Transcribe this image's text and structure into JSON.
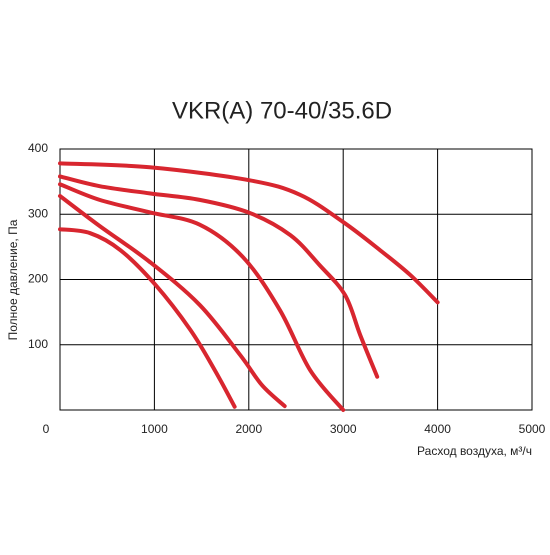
{
  "chart_data": {
    "type": "line",
    "title": "VKR(A) 70-40/35.6D",
    "x_label": "Расход воздуха, м³/ч",
    "y_label": "Полное давление, Па",
    "color": "#d8262f",
    "grid": true,
    "xlim": [
      0,
      5000
    ],
    "ylim": [
      0,
      400
    ],
    "xticks": [
      0,
      1000,
      2000,
      3000,
      4000,
      5000
    ],
    "yticks": [
      100,
      200,
      300,
      400
    ],
    "series": [
      {
        "x": [
          0,
          950,
          2010,
          2540,
          3000,
          3390,
          3710,
          4000
        ],
        "values": [
          378,
          372,
          352,
          330,
          288,
          245,
          207,
          165
        ]
      },
      {
        "x": [
          0,
          420,
          950,
          1480,
          2010,
          2440,
          2750,
          3020,
          3180,
          3360
        ],
        "values": [
          358,
          343,
          332,
          322,
          302,
          268,
          222,
          176,
          115,
          51
        ]
      },
      {
        "x": [
          0,
          420,
          950,
          1480,
          1940,
          2330,
          2650,
          3000
        ],
        "values": [
          346,
          322,
          303,
          284,
          234,
          153,
          61,
          0
        ]
      },
      {
        "x": [
          0,
          420,
          950,
          1480,
          1910,
          2140,
          2380
        ],
        "values": [
          328,
          282,
          227,
          161,
          84,
          38,
          6
        ]
      },
      {
        "x": [
          0,
          320,
          640,
          1010,
          1380,
          1640,
          1850
        ],
        "values": [
          277,
          271,
          245,
          192,
          123,
          61,
          5
        ]
      }
    ]
  }
}
